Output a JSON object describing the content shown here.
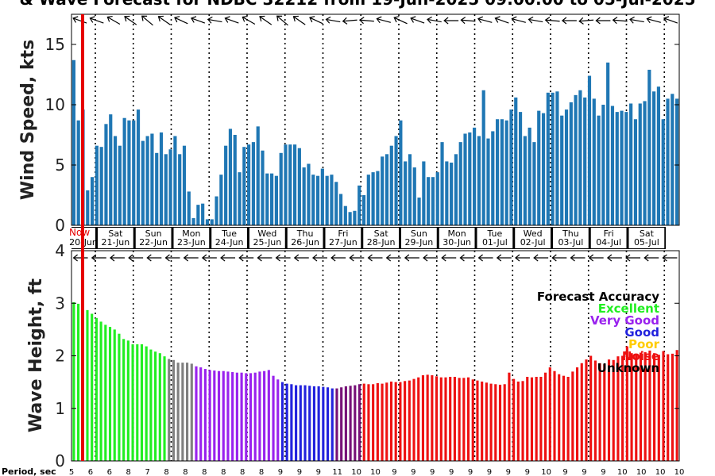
{
  "title": "& Wave Forecast for NDBC 32212 from 19-Jun-2025 09:00:00 to 05-Jul-2025",
  "now_label": "Now",
  "period_label": "Period, sec",
  "chart_data": [
    {
      "type": "bar",
      "name": "wind",
      "ylabel": "Wind Speed, kts",
      "ylim": [
        0,
        17.5
      ],
      "yticks": [
        "0",
        "5",
        "10",
        "15"
      ],
      "bar_color": "#1f77b4",
      "values": [
        13.7,
        8.7,
        9.6,
        2.9,
        4.0,
        6.6,
        6.5,
        8.4,
        9.2,
        7.4,
        6.6,
        8.9,
        8.7,
        8.7,
        9.6,
        7.0,
        7.4,
        7.6,
        6.0,
        7.7,
        5.9,
        6.3,
        7.4,
        5.9,
        6.6,
        2.8,
        0.6,
        1.7,
        1.8,
        0.5,
        0.5,
        2.4,
        4.2,
        6.6,
        8.0,
        7.5,
        4.4,
        6.5,
        6.7,
        6.9,
        8.2,
        6.2,
        4.3,
        4.3,
        4.1,
        6.0,
        6.7,
        6.7,
        6.7,
        6.4,
        4.8,
        5.1,
        4.2,
        4.1,
        4.7,
        4.1,
        4.2,
        3.6,
        2.6,
        1.6,
        1.1,
        1.2,
        3.3,
        2.5,
        4.2,
        4.4,
        4.5,
        5.7,
        5.9,
        6.6,
        7.4,
        8.7,
        5.3,
        5.9,
        4.8,
        2.3,
        5.3,
        4.0,
        4.0,
        4.4,
        6.9,
        5.3,
        5.2,
        5.9,
        6.9,
        7.6,
        7.7,
        8.1,
        7.4,
        11.2,
        7.2,
        7.8,
        8.8,
        8.8,
        8.7,
        9.6,
        10.6,
        9.4,
        7.4,
        8.1,
        6.9,
        9.5,
        9.3,
        11.0,
        11.0,
        11.1,
        9.1,
        9.6,
        10.2,
        10.8,
        11.2,
        10.6,
        12.4,
        10.5,
        9.1,
        10.0,
        13.5,
        9.9,
        9.4,
        9.5,
        9.4,
        10.1,
        8.8,
        10.1,
        10.3,
        12.9,
        11.1,
        11.5,
        8.8,
        10.5,
        10.9,
        10.5
      ]
    },
    {
      "type": "bar",
      "name": "wave",
      "ylabel": "Wave Height, ft",
      "ylim": [
        0,
        4
      ],
      "yticks": [
        "0",
        "1",
        "2",
        "3",
        "4"
      ],
      "values": [
        3.02,
        2.99,
        2.99,
        2.87,
        2.8,
        2.72,
        2.65,
        2.59,
        2.55,
        2.5,
        2.42,
        2.32,
        2.29,
        2.22,
        2.22,
        2.22,
        2.18,
        2.12,
        2.08,
        2.05,
        1.99,
        1.94,
        1.92,
        1.87,
        1.87,
        1.87,
        1.85,
        1.8,
        1.78,
        1.75,
        1.73,
        1.72,
        1.71,
        1.71,
        1.7,
        1.69,
        1.68,
        1.68,
        1.67,
        1.67,
        1.68,
        1.7,
        1.71,
        1.73,
        1.62,
        1.55,
        1.5,
        1.47,
        1.46,
        1.44,
        1.44,
        1.44,
        1.43,
        1.42,
        1.42,
        1.41,
        1.4,
        1.38,
        1.38,
        1.4,
        1.42,
        1.43,
        1.44,
        1.46,
        1.47,
        1.46,
        1.46,
        1.48,
        1.47,
        1.49,
        1.51,
        1.5,
        1.5,
        1.52,
        1.53,
        1.56,
        1.59,
        1.63,
        1.64,
        1.63,
        1.61,
        1.59,
        1.59,
        1.6,
        1.6,
        1.58,
        1.58,
        1.59,
        1.55,
        1.53,
        1.51,
        1.49,
        1.47,
        1.46,
        1.45,
        1.46,
        1.68,
        1.56,
        1.51,
        1.52,
        1.6,
        1.59,
        1.6,
        1.6,
        1.68,
        1.78,
        1.71,
        1.65,
        1.62,
        1.6,
        1.7,
        1.78,
        1.86,
        1.93,
        2.0,
        1.91,
        1.86,
        1.84,
        1.93,
        1.92,
        1.99,
        2.0,
        2.18,
        2.05,
        2.03,
        2.06,
        2.07,
        2.1,
        2.05,
        2.02,
        2.09,
        2.03,
        2.04,
        2.11
      ],
      "accuracy_segments": [
        {
          "count": 21,
          "color": "#22ee22"
        },
        {
          "count": 6,
          "color": "#808080"
        },
        {
          "count": 19,
          "color": "#9922ee"
        },
        {
          "count": 12,
          "color": "#2222dd"
        },
        {
          "count": 6,
          "color": "#771177"
        },
        {
          "count": 68,
          "color": "#ee1111"
        }
      ],
      "legend": {
        "title": "Forecast Accuracy",
        "items": [
          {
            "label": "Excellent",
            "color": "#22ee22"
          },
          {
            "label": "Very Good",
            "color": "#9922ee"
          },
          {
            "label": "Good",
            "color": "#2222dd"
          },
          {
            "label": "Poor",
            "color": "#ffcc00"
          },
          {
            "label": "Noise",
            "color": "#ee1111"
          },
          {
            "label": "Unknown",
            "color": "#000000"
          }
        ]
      }
    }
  ],
  "days": [
    {
      "dow": "",
      "date": "20-Jun"
    },
    {
      "dow": "Sat",
      "date": "21-Jun"
    },
    {
      "dow": "Sun",
      "date": "22-Jun"
    },
    {
      "dow": "Mon",
      "date": "23-Jun"
    },
    {
      "dow": "Tue",
      "date": "24-Jun"
    },
    {
      "dow": "Wed",
      "date": "25-Jun"
    },
    {
      "dow": "Thu",
      "date": "26-Jun"
    },
    {
      "dow": "Fri",
      "date": "27-Jun"
    },
    {
      "dow": "Sat",
      "date": "28-Jun"
    },
    {
      "dow": "Sun",
      "date": "29-Jun"
    },
    {
      "dow": "Mon",
      "date": "30-Jun"
    },
    {
      "dow": "Tue",
      "date": "01-Jul"
    },
    {
      "dow": "Wed",
      "date": "02-Jul"
    },
    {
      "dow": "Thu",
      "date": "03-Jul"
    },
    {
      "dow": "Fri",
      "date": "04-Jul"
    },
    {
      "dow": "Sat",
      "date": "05-Jul"
    }
  ],
  "period_values": [
    "5",
    "6",
    "6",
    "8",
    "7",
    "8",
    "8",
    "8",
    "8",
    "8",
    "8",
    "9",
    "9",
    "9",
    "11",
    "10",
    "10",
    "9",
    "9",
    "9",
    "9",
    "9",
    "9",
    "9",
    "9",
    "10",
    "9",
    "9",
    "9",
    "10",
    "10",
    "10",
    "10"
  ],
  "wind_dir_angles": [
    200,
    200,
    210,
    215,
    220,
    215,
    205,
    200,
    190,
    200,
    210,
    215,
    220,
    215,
    205,
    190,
    175,
    185,
    195,
    205,
    200,
    190,
    180,
    185,
    195,
    200,
    195,
    190,
    185,
    180,
    175,
    180,
    185,
    190,
    195,
    200
  ],
  "wave_dir_angles": [
    180,
    180,
    180,
    180,
    180,
    180,
    180,
    180,
    180,
    180,
    180,
    180,
    180,
    180,
    180,
    180,
    180,
    180,
    180,
    180,
    180,
    180,
    180,
    180,
    180,
    180,
    180,
    180,
    180,
    180,
    180,
    180,
    180
  ]
}
